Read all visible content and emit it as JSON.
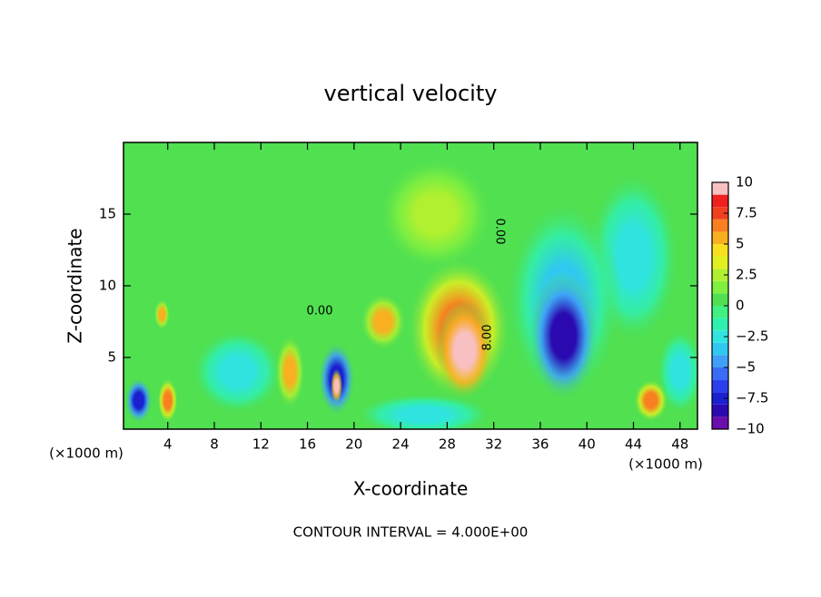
{
  "chart_data": {
    "type": "contour",
    "title": "vertical velocity",
    "xlabel": "X-coordinate",
    "ylabel": "Z-coordinate",
    "x_unit": "(×1000 m)",
    "y_unit": "(×1000 m)",
    "footnote": "CONTOUR INTERVAL = 4.000E+00",
    "contour_labels": [
      "0.00",
      "0.00",
      "8.00"
    ],
    "xlim": [
      0.2,
      49.5
    ],
    "ylim": [
      0,
      20
    ],
    "xticks": [
      4,
      8,
      12,
      16,
      20,
      24,
      28,
      32,
      36,
      40,
      44,
      48
    ],
    "yticks": [
      5,
      10,
      15
    ],
    "background_value": 0.5,
    "field": [
      {
        "x": 27,
        "y": 15,
        "value": 2.5,
        "sx": 5,
        "sy": 4
      },
      {
        "x": 10,
        "y": 4,
        "value": -3,
        "sx": 4,
        "sy": 3
      },
      {
        "x": 26,
        "y": 1,
        "value": -3,
        "sx": 6,
        "sy": 1.5
      },
      {
        "x": 44,
        "y": 12,
        "value": -2.5,
        "sx": 4,
        "sy": 6
      },
      {
        "x": 48,
        "y": 4,
        "value": -3,
        "sx": 2,
        "sy": 3
      },
      {
        "x": 38,
        "y": 9,
        "value": -4,
        "sx": 5,
        "sy": 7
      },
      {
        "x": 38,
        "y": 6.5,
        "value": -9,
        "sx": 3,
        "sy": 4.5
      },
      {
        "x": 29,
        "y": 7,
        "value": 6,
        "sx": 4.5,
        "sy": 5
      },
      {
        "x": 22.5,
        "y": 7.5,
        "value": 5,
        "sx": 2,
        "sy": 2
      },
      {
        "x": 29.5,
        "y": 5.5,
        "value": 10,
        "sx": 2.5,
        "sy": 3.5
      },
      {
        "x": 1.5,
        "y": 2,
        "value": -8,
        "sx": 1.2,
        "sy": 1.6
      },
      {
        "x": 4,
        "y": 2,
        "value": 6,
        "sx": 0.9,
        "sy": 1.6
      },
      {
        "x": 3.5,
        "y": 8,
        "value": 5,
        "sx": 0.7,
        "sy": 1.1
      },
      {
        "x": 14.5,
        "y": 4,
        "value": 5,
        "sx": 1.3,
        "sy": 2.6
      },
      {
        "x": 18.5,
        "y": 3.5,
        "value": -8,
        "sx": 1.6,
        "sy": 2.6
      },
      {
        "x": 18.5,
        "y": 3,
        "value": 10,
        "sx": 0.5,
        "sy": 1.2
      },
      {
        "x": 45.5,
        "y": 2,
        "value": 6,
        "sx": 1.5,
        "sy": 1.5
      }
    ],
    "levels": [
      -10,
      -9,
      -8,
      -7,
      -6,
      -5,
      -4,
      -3,
      -2,
      -1,
      0,
      1,
      2,
      3,
      4,
      5,
      6,
      7,
      8,
      9,
      10
    ],
    "colors": [
      "#6a0dad",
      "#2a0ab0",
      "#1a20d0",
      "#2a40ec",
      "#3a6cf6",
      "#40a0f8",
      "#30c8f0",
      "#30e4e0",
      "#30f0b0",
      "#40f080",
      "#50e050",
      "#80f040",
      "#b0f030",
      "#e0f020",
      "#f8e020",
      "#f8b020",
      "#f88020",
      "#f04020",
      "#f02020",
      "#f8c0c0"
    ],
    "colorbar_ticks": [
      {
        "value": -10,
        "label": "−10"
      },
      {
        "value": -7.5,
        "label": "−7.5"
      },
      {
        "value": -5,
        "label": "−5"
      },
      {
        "value": -2.5,
        "label": "−2.5"
      },
      0,
      2.5,
      5,
      7.5,
      10
    ]
  }
}
